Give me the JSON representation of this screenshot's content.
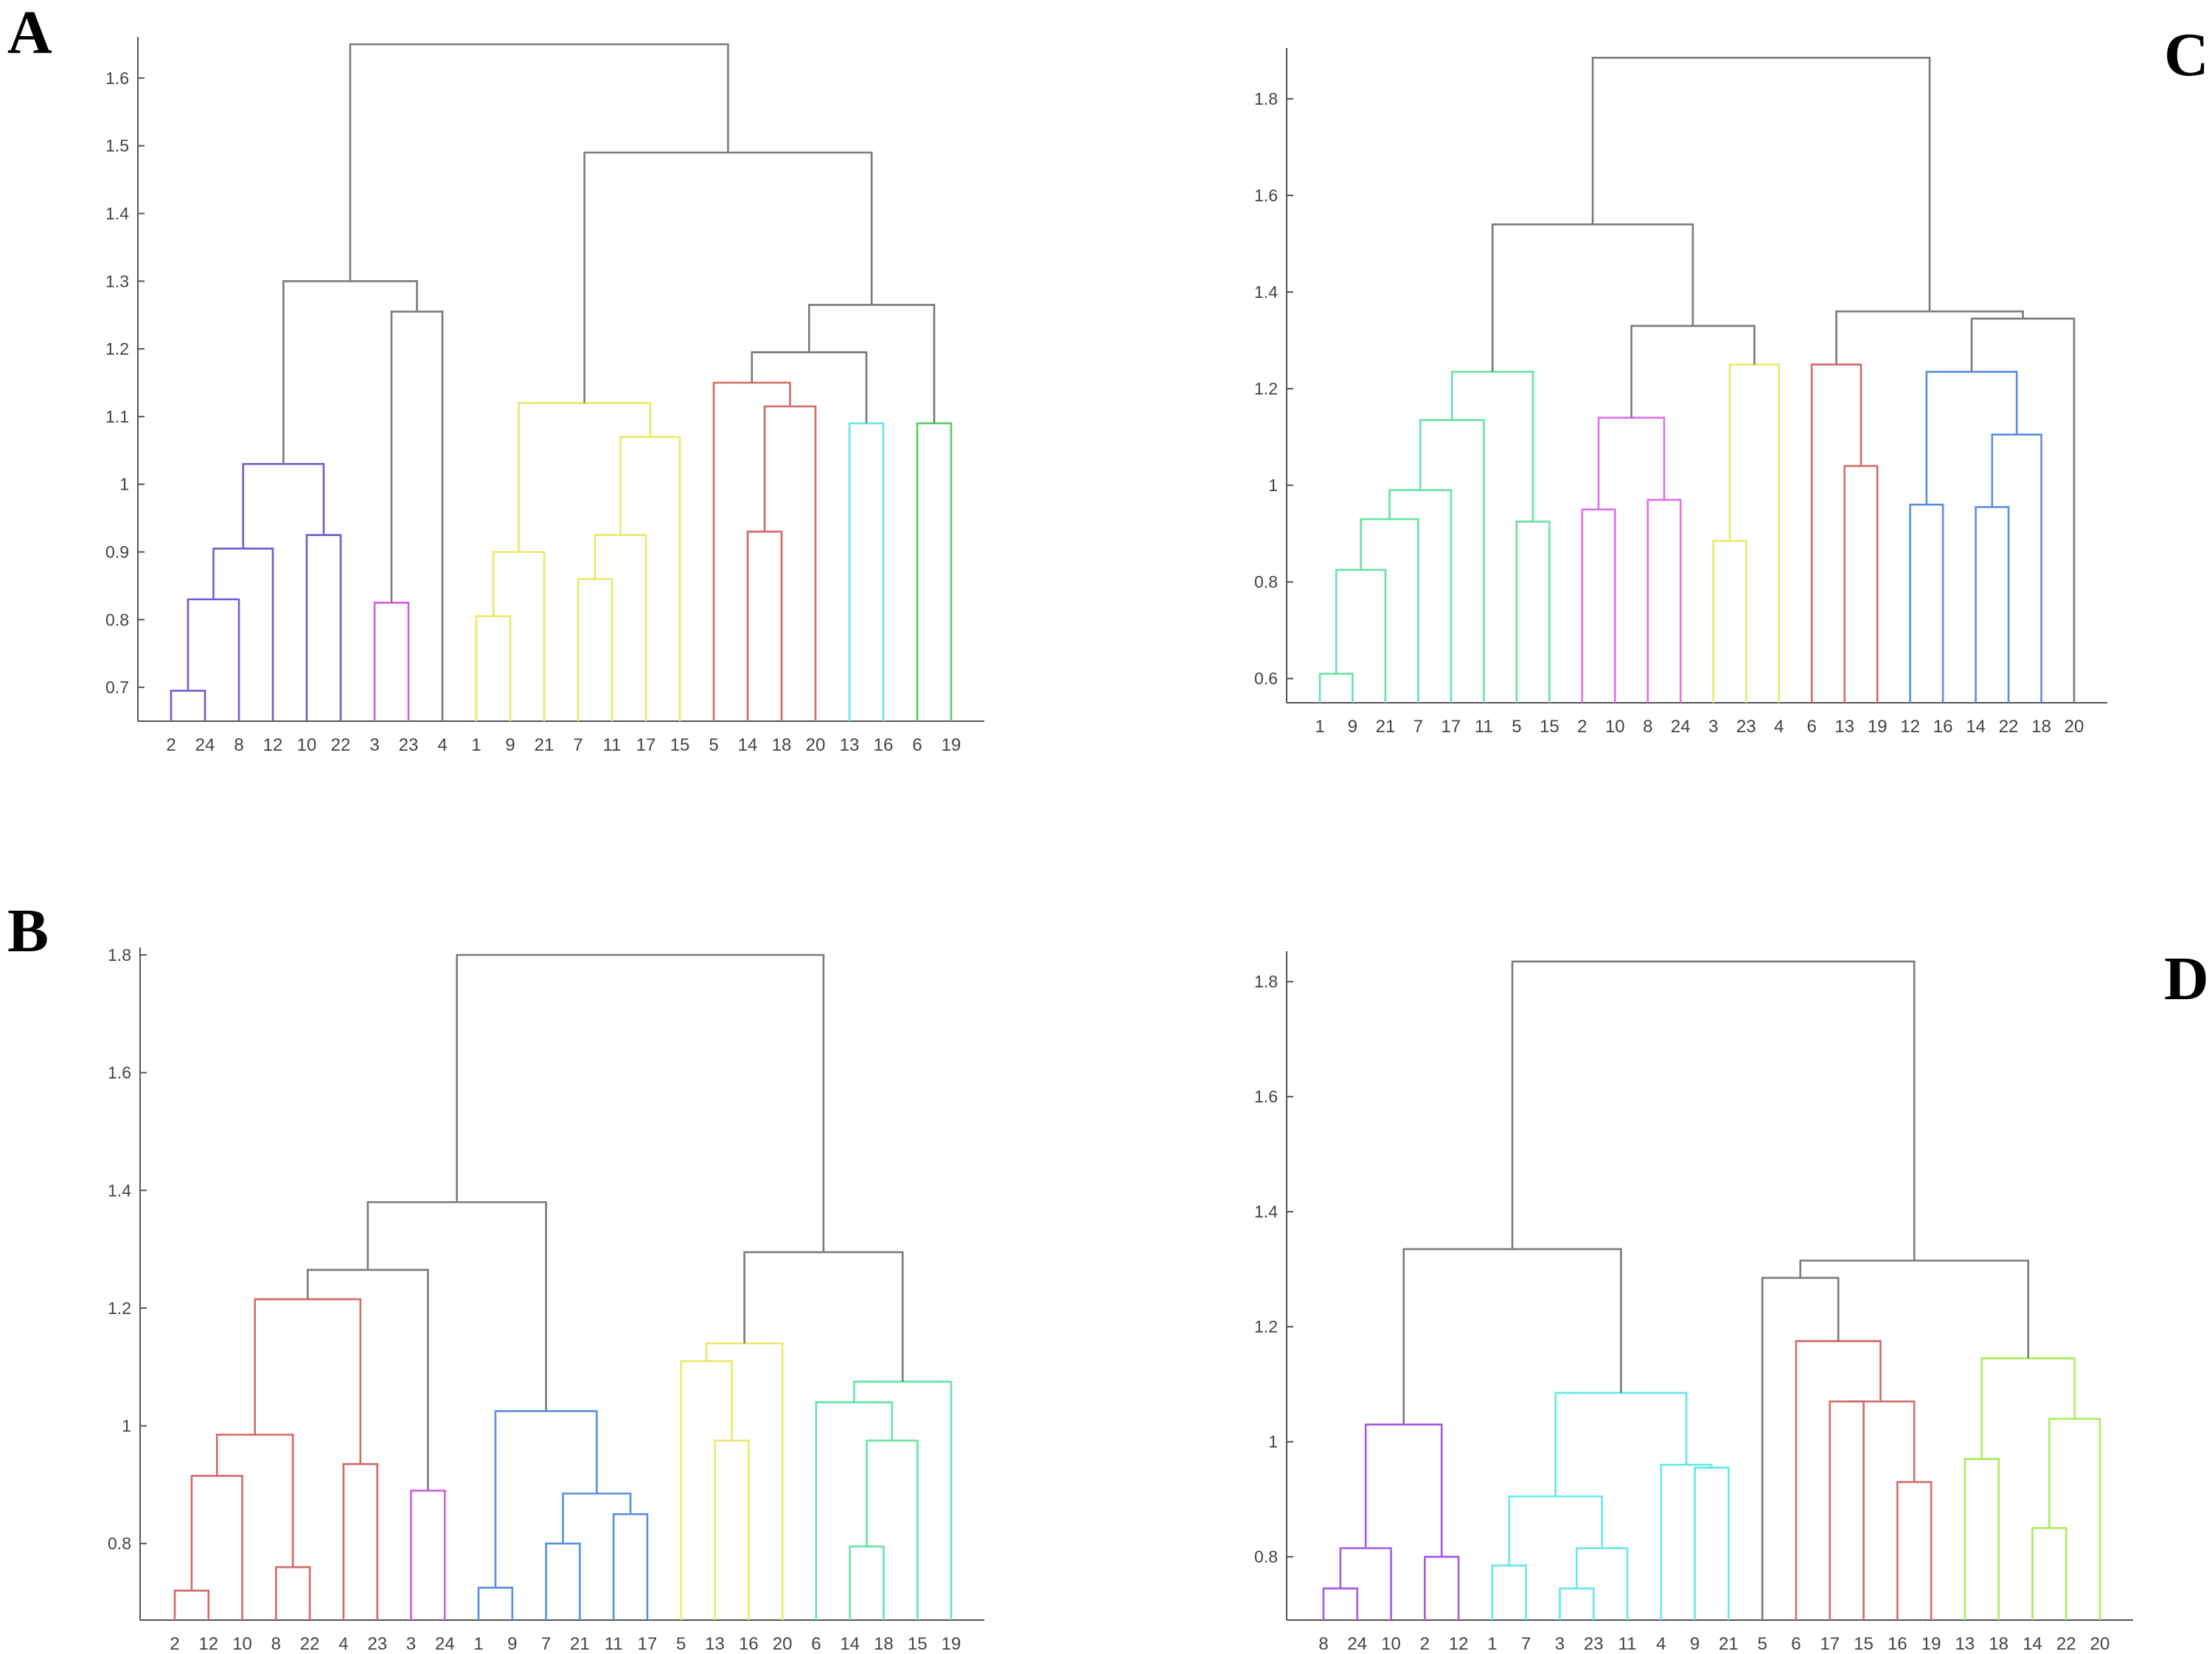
{
  "colors": {
    "above_threshold": "#7a7a7a",
    "purple_blue": "#6a5fcc",
    "magenta": "#d45ae0",
    "yellow": "#e9ea6a",
    "red": "#d46a6a",
    "cyan": "#66e8e8",
    "green": "#55cc66",
    "mint": "#66e3a3",
    "light_magenta": "#e070e8",
    "blue": "#5a8fe0",
    "violet": "#a45ae8",
    "lime": "#a8ec5a"
  },
  "chart_data": [
    {
      "panel": "A",
      "type": "dendrogram",
      "ylim": [
        0.65,
        1.65
      ],
      "yticks": [
        "0.7",
        "0.8",
        "0.9",
        "1",
        "1.1",
        "1.2",
        "1.3",
        "1.4",
        "1.5",
        "1.6"
      ],
      "ytick_values": [
        0.7,
        0.8,
        0.9,
        1.0,
        1.1,
        1.2,
        1.3,
        1.4,
        1.5,
        1.6
      ],
      "leaves": [
        "2",
        "24",
        "8",
        "12",
        "10",
        "22",
        "3",
        "23",
        "4",
        "1",
        "9",
        "21",
        "7",
        "11",
        "17",
        "15",
        "5",
        "14",
        "18",
        "20",
        "13",
        "16",
        "6",
        "19"
      ],
      "merges": [
        {
          "a": 0,
          "b": 1,
          "h": 0.695,
          "c": "purple_blue"
        },
        {
          "a": 24,
          "b": 2,
          "h": 0.83,
          "c": "purple_blue"
        },
        {
          "a": 25,
          "b": 3,
          "h": 0.905,
          "c": "purple_blue"
        },
        {
          "a": 4,
          "b": 5,
          "h": 0.925,
          "c": "purple_blue"
        },
        {
          "a": 26,
          "b": 27,
          "h": 1.03,
          "c": "purple_blue"
        },
        {
          "a": 6,
          "b": 7,
          "h": 0.825,
          "c": "magenta"
        },
        {
          "a": 29,
          "b": 8,
          "h": 1.255,
          "c": "above_threshold"
        },
        {
          "a": 28,
          "b": 30,
          "h": 1.3,
          "c": "above_threshold"
        },
        {
          "a": 9,
          "b": 10,
          "h": 0.805,
          "c": "yellow"
        },
        {
          "a": 32,
          "b": 11,
          "h": 0.9,
          "c": "yellow"
        },
        {
          "a": 12,
          "b": 13,
          "h": 0.86,
          "c": "yellow"
        },
        {
          "a": 34,
          "b": 14,
          "h": 0.925,
          "c": "yellow"
        },
        {
          "a": 35,
          "b": 15,
          "h": 1.07,
          "c": "yellow"
        },
        {
          "a": 33,
          "b": 36,
          "h": 1.12,
          "c": "yellow"
        },
        {
          "a": 17,
          "b": 18,
          "h": 0.93,
          "c": "red"
        },
        {
          "a": 38,
          "b": 19,
          "h": 1.115,
          "c": "red"
        },
        {
          "a": 16,
          "b": 39,
          "h": 1.15,
          "c": "red"
        },
        {
          "a": 20,
          "b": 21,
          "h": 1.09,
          "c": "cyan"
        },
        {
          "a": 40,
          "b": 41,
          "h": 1.195,
          "c": "above_threshold"
        },
        {
          "a": 22,
          "b": 23,
          "h": 1.09,
          "c": "green"
        },
        {
          "a": 42,
          "b": 43,
          "h": 1.265,
          "c": "above_threshold"
        },
        {
          "a": 37,
          "b": 44,
          "h": 1.49,
          "c": "above_threshold"
        },
        {
          "a": 31,
          "b": 45,
          "h": 1.65,
          "c": "above_threshold"
        }
      ]
    },
    {
      "panel": "B",
      "type": "dendrogram",
      "ylim": [
        0.67,
        1.8
      ],
      "yticks": [
        "0.8",
        "1",
        "1.2",
        "1.4",
        "1.6",
        "1.8"
      ],
      "ytick_values": [
        0.8,
        1.0,
        1.2,
        1.4,
        1.6,
        1.8
      ],
      "leaves": [
        "2",
        "12",
        "10",
        "8",
        "22",
        "4",
        "23",
        "3",
        "24",
        "1",
        "9",
        "7",
        "21",
        "11",
        "17",
        "5",
        "13",
        "16",
        "20",
        "6",
        "14",
        "18",
        "15",
        "19"
      ],
      "merges": [
        {
          "a": 0,
          "b": 1,
          "h": 0.72,
          "c": "red"
        },
        {
          "a": 24,
          "b": 2,
          "h": 0.915,
          "c": "red"
        },
        {
          "a": 3,
          "b": 4,
          "h": 0.76,
          "c": "red"
        },
        {
          "a": 25,
          "b": 26,
          "h": 0.985,
          "c": "red"
        },
        {
          "a": 5,
          "b": 6,
          "h": 0.935,
          "c": "red"
        },
        {
          "a": 27,
          "b": 28,
          "h": 1.215,
          "c": "red"
        },
        {
          "a": 7,
          "b": 8,
          "h": 0.89,
          "c": "magenta"
        },
        {
          "a": 29,
          "b": 30,
          "h": 1.265,
          "c": "above_threshold"
        },
        {
          "a": 9,
          "b": 10,
          "h": 0.725,
          "c": "blue"
        },
        {
          "a": 11,
          "b": 12,
          "h": 0.8,
          "c": "blue"
        },
        {
          "a": 13,
          "b": 14,
          "h": 0.85,
          "c": "blue"
        },
        {
          "a": 33,
          "b": 34,
          "h": 0.885,
          "c": "blue"
        },
        {
          "a": 32,
          "b": 35,
          "h": 1.025,
          "c": "blue"
        },
        {
          "a": 31,
          "b": 36,
          "h": 1.38,
          "c": "above_threshold"
        },
        {
          "a": 16,
          "b": 17,
          "h": 0.975,
          "c": "yellow"
        },
        {
          "a": 15,
          "b": 38,
          "h": 1.11,
          "c": "yellow"
        },
        {
          "a": 39,
          "b": 18,
          "h": 1.14,
          "c": "yellow"
        },
        {
          "a": 20,
          "b": 21,
          "h": 0.795,
          "c": "mint"
        },
        {
          "a": 41,
          "b": 22,
          "h": 0.975,
          "c": "mint"
        },
        {
          "a": 19,
          "b": 42,
          "h": 1.04,
          "c": "mint"
        },
        {
          "a": 43,
          "b": 23,
          "h": 1.075,
          "c": "mint"
        },
        {
          "a": 40,
          "b": 44,
          "h": 1.295,
          "c": "above_threshold"
        },
        {
          "a": 37,
          "b": 45,
          "h": 1.8,
          "c": "above_threshold"
        }
      ]
    },
    {
      "panel": "C",
      "type": "dendrogram",
      "ylim": [
        0.55,
        1.89
      ],
      "yticks": [
        "0.6",
        "0.8",
        "1",
        "1.2",
        "1.4",
        "1.6",
        "1.8"
      ],
      "ytick_values": [
        0.6,
        0.8,
        1.0,
        1.2,
        1.4,
        1.6,
        1.8
      ],
      "leaves": [
        "1",
        "9",
        "21",
        "7",
        "17",
        "11",
        "5",
        "15",
        "2",
        "10",
        "8",
        "24",
        "3",
        "23",
        "4",
        "6",
        "13",
        "19",
        "12",
        "16",
        "14",
        "22",
        "18",
        "20"
      ],
      "merges": [
        {
          "a": 0,
          "b": 1,
          "h": 0.61,
          "c": "mint"
        },
        {
          "a": 24,
          "b": 2,
          "h": 0.825,
          "c": "mint"
        },
        {
          "a": 25,
          "b": 3,
          "h": 0.93,
          "c": "mint"
        },
        {
          "a": 26,
          "b": 4,
          "h": 0.99,
          "c": "mint"
        },
        {
          "a": 27,
          "b": 5,
          "h": 1.135,
          "c": "mint"
        },
        {
          "a": 6,
          "b": 7,
          "h": 0.925,
          "c": "mint"
        },
        {
          "a": 28,
          "b": 29,
          "h": 1.235,
          "c": "mint"
        },
        {
          "a": 8,
          "b": 9,
          "h": 0.95,
          "c": "light_magenta"
        },
        {
          "a": 10,
          "b": 11,
          "h": 0.97,
          "c": "light_magenta"
        },
        {
          "a": 31,
          "b": 32,
          "h": 1.14,
          "c": "light_magenta"
        },
        {
          "a": 12,
          "b": 13,
          "h": 0.885,
          "c": "yellow"
        },
        {
          "a": 34,
          "b": 14,
          "h": 1.25,
          "c": "yellow"
        },
        {
          "a": 33,
          "b": 35,
          "h": 1.33,
          "c": "above_threshold"
        },
        {
          "a": 30,
          "b": 36,
          "h": 1.54,
          "c": "above_threshold"
        },
        {
          "a": 16,
          "b": 17,
          "h": 1.04,
          "c": "red"
        },
        {
          "a": 15,
          "b": 38,
          "h": 1.25,
          "c": "red"
        },
        {
          "a": 18,
          "b": 19,
          "h": 0.96,
          "c": "blue"
        },
        {
          "a": 20,
          "b": 21,
          "h": 0.955,
          "c": "blue"
        },
        {
          "a": 41,
          "b": 22,
          "h": 1.105,
          "c": "blue"
        },
        {
          "a": 40,
          "b": 42,
          "h": 1.235,
          "c": "blue"
        },
        {
          "a": 43,
          "b": 23,
          "h": 1.345,
          "c": "above_threshold"
        },
        {
          "a": 39,
          "b": 44,
          "h": 1.36,
          "c": "above_threshold"
        },
        {
          "a": 37,
          "b": 45,
          "h": 1.885,
          "c": "above_threshold"
        }
      ]
    },
    {
      "panel": "D",
      "type": "dendrogram",
      "ylim": [
        0.69,
        1.84
      ],
      "yticks": [
        "0.8",
        "1",
        "1.2",
        "1.4",
        "1.6",
        "1.8"
      ],
      "ytick_values": [
        0.8,
        1.0,
        1.2,
        1.4,
        1.6,
        1.8
      ],
      "leaves": [
        "8",
        "24",
        "10",
        "2",
        "12",
        "1",
        "7",
        "3",
        "23",
        "11",
        "4",
        "9",
        "21",
        "5",
        "6",
        "17",
        "15",
        "16",
        "19",
        "13",
        "18",
        "14",
        "22",
        "20"
      ],
      "merges": [
        {
          "a": 0,
          "b": 1,
          "h": 0.745,
          "c": "violet"
        },
        {
          "a": 24,
          "b": 2,
          "h": 0.815,
          "c": "violet"
        },
        {
          "a": 3,
          "b": 4,
          "h": 0.8,
          "c": "violet"
        },
        {
          "a": 25,
          "b": 26,
          "h": 1.03,
          "c": "violet"
        },
        {
          "a": 5,
          "b": 6,
          "h": 0.785,
          "c": "cyan"
        },
        {
          "a": 7,
          "b": 8,
          "h": 0.745,
          "c": "cyan"
        },
        {
          "a": 29,
          "b": 9,
          "h": 0.815,
          "c": "cyan"
        },
        {
          "a": 28,
          "b": 30,
          "h": 0.905,
          "c": "cyan"
        },
        {
          "a": 11,
          "b": 12,
          "h": 0.955,
          "c": "cyan"
        },
        {
          "a": 10,
          "b": 32,
          "h": 0.96,
          "c": "cyan"
        },
        {
          "a": 31,
          "b": 33,
          "h": 1.085,
          "c": "cyan"
        },
        {
          "a": 27,
          "b": 34,
          "h": 1.335,
          "c": "above_threshold"
        },
        {
          "a": 15,
          "b": 16,
          "h": 1.07,
          "c": "red"
        },
        {
          "a": 17,
          "b": 18,
          "h": 0.93,
          "c": "red"
        },
        {
          "a": 36,
          "b": 37,
          "h": 1.07,
          "c": "red"
        },
        {
          "a": 14,
          "b": 38,
          "h": 1.175,
          "c": "red"
        },
        {
          "a": 13,
          "b": 39,
          "h": 1.285,
          "c": "above_threshold"
        },
        {
          "a": 19,
          "b": 20,
          "h": 0.97,
          "c": "lime"
        },
        {
          "a": 21,
          "b": 22,
          "h": 0.85,
          "c": "lime"
        },
        {
          "a": 42,
          "b": 23,
          "h": 1.04,
          "c": "lime"
        },
        {
          "a": 41,
          "b": 43,
          "h": 1.145,
          "c": "lime"
        },
        {
          "a": 40,
          "b": 44,
          "h": 1.315,
          "c": "above_threshold"
        },
        {
          "a": 35,
          "b": 45,
          "h": 1.835,
          "c": "above_threshold"
        }
      ]
    }
  ]
}
